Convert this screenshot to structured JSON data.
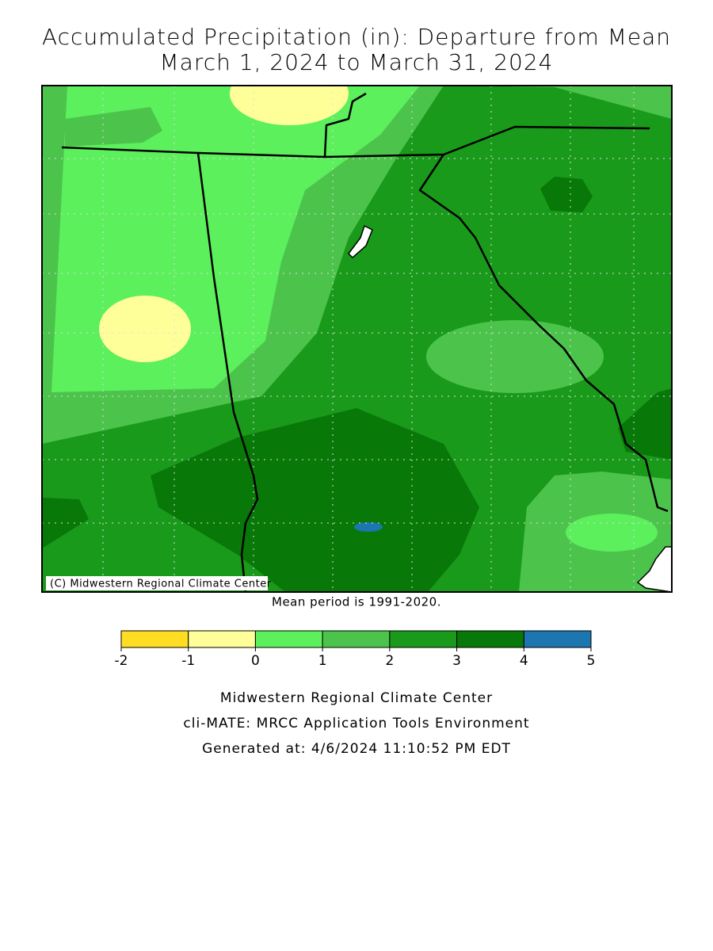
{
  "header": {
    "line1": "Accumulated Precipitation (in): Departure from Mean",
    "line2": "March 1, 2024 to March 31, 2024"
  },
  "map": {
    "credit": "(C) Midwestern Regional Climate Center",
    "note": "Mean period is 1991-2020."
  },
  "legend": {
    "bins": [
      -2,
      -1,
      0,
      1,
      2,
      3,
      4,
      5
    ],
    "colors": [
      "#ffdd22",
      "#ffff99",
      "#5cf05c",
      "#4cc44c",
      "#1a9a1a",
      "#087808",
      "#1c76b0"
    ]
  },
  "footer": {
    "lines": [
      "Midwestern Regional Climate Center",
      "cli-MATE: MRCC Application Tools Environment",
      "Generated at: 4/6/2024 11:10:52 PM EDT"
    ]
  }
}
